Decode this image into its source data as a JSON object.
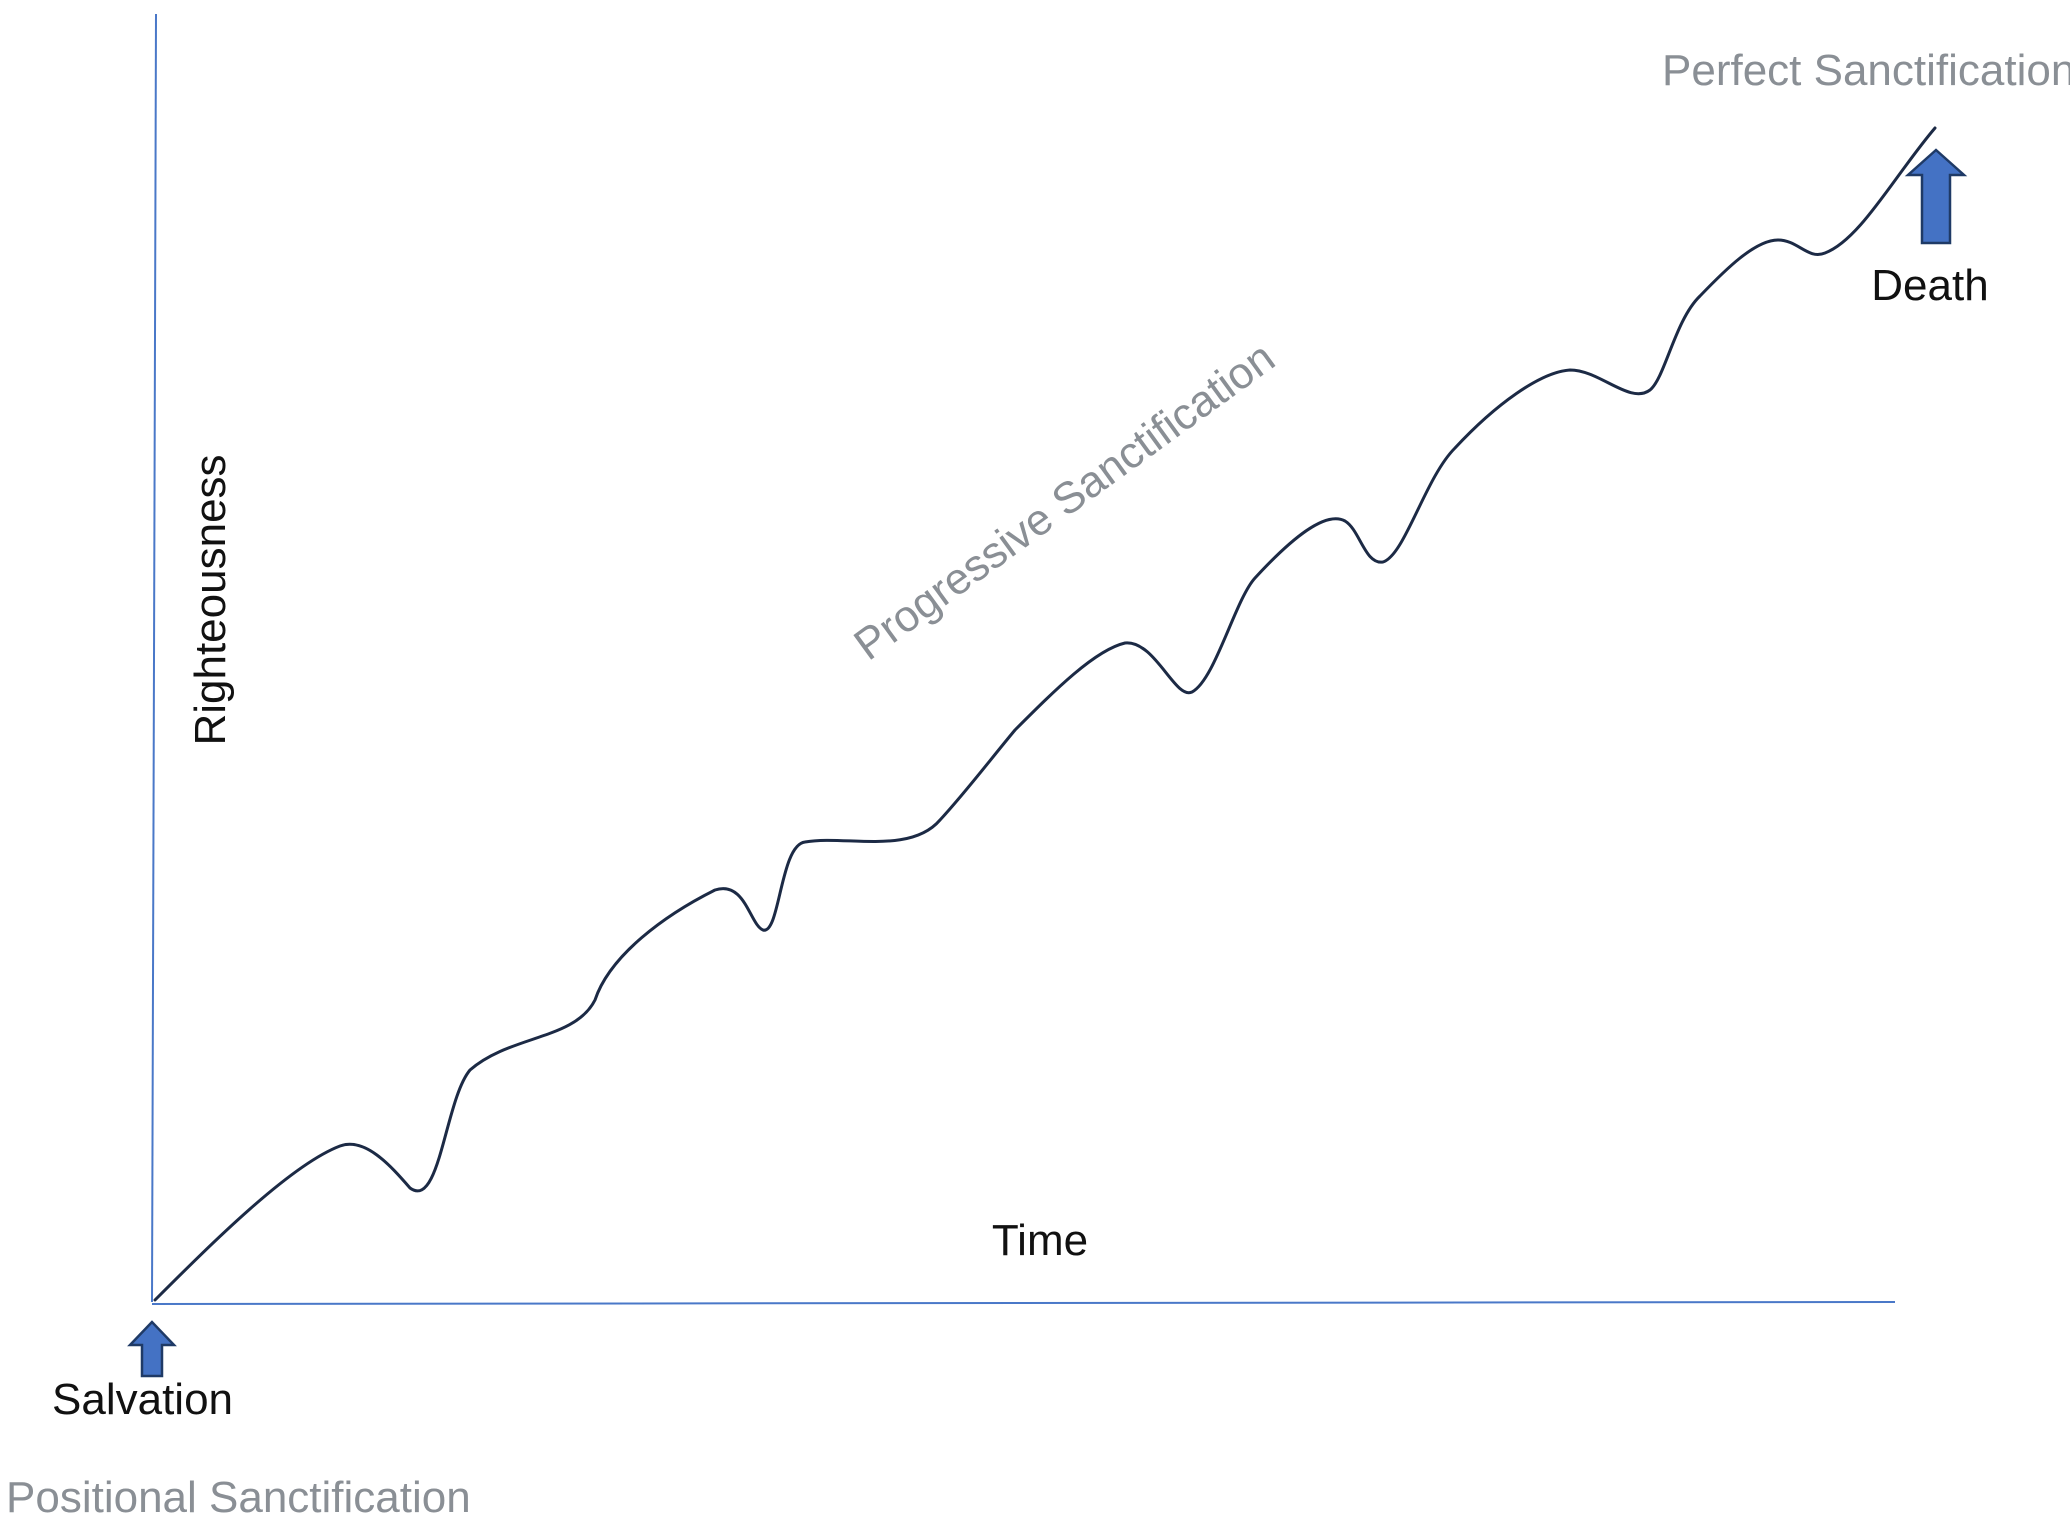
{
  "diagram": {
    "y_axis_label": "Righteousness",
    "x_axis_label": "Time",
    "curve_label": "Progressive Sanctification",
    "start_marker": {
      "label": "Salvation",
      "caption": "Positional Sanctification",
      "icon": "up-arrow-icon"
    },
    "end_marker": {
      "label": "Death",
      "caption": "Perfect Sanctification",
      "icon": "up-arrow-icon"
    },
    "colors": {
      "axis": "#4a78c8",
      "curve": "#1c2a45",
      "arrow_fill": "#4472c4",
      "caption_text": "#8a8f95",
      "label_text": "#111111"
    }
  }
}
